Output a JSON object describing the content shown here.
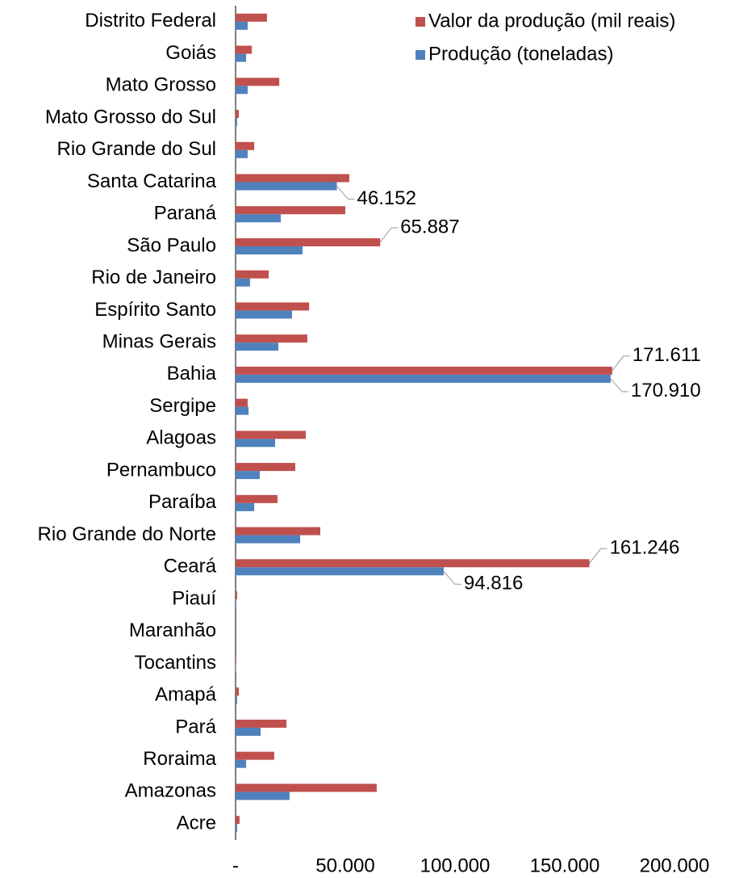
{
  "chart_data": {
    "type": "bar",
    "orientation": "horizontal",
    "categories": [
      "Distrito Federal",
      "Goiás",
      "Mato Grosso",
      "Mato Grosso do Sul",
      "Rio Grande do Sul",
      "Santa Catarina",
      "Paraná",
      "São Paulo",
      "Rio de Janeiro",
      "Espírito Santo",
      "Minas Gerais",
      "Bahia",
      "Sergipe",
      "Alagoas",
      "Pernambuco",
      "Paraíba",
      "Rio Grande do Norte",
      "Ceará",
      "Piauí",
      "Maranhão",
      "Tocantins",
      "Amapá",
      "Pará",
      "Roraima",
      "Amazonas",
      "Acre"
    ],
    "series": [
      {
        "name": "Valor da produção (mil reais)",
        "color": "#c0504d",
        "values": [
          14300,
          7400,
          19900,
          1500,
          8500,
          51800,
          50000,
          65887,
          15100,
          33500,
          32700,
          171611,
          5500,
          32000,
          27200,
          19100,
          38600,
          161246,
          700,
          0,
          300,
          1500,
          23200,
          17600,
          64300,
          1800
        ],
        "value_labels": [
          null,
          null,
          null,
          null,
          null,
          null,
          null,
          "65.887",
          null,
          null,
          null,
          "171.611",
          null,
          null,
          null,
          null,
          null,
          "161.246",
          null,
          null,
          null,
          null,
          null,
          null,
          null,
          null
        ]
      },
      {
        "name": "Produção (toneladas)",
        "color": "#4f81bd",
        "values": [
          5500,
          4800,
          5500,
          700,
          5500,
          46152,
          20600,
          30500,
          6600,
          25700,
          19500,
          170910,
          5900,
          18000,
          11000,
          8500,
          29400,
          94816,
          300,
          0,
          200,
          700,
          11400,
          4800,
          24600,
          700
        ],
        "value_labels": [
          null,
          null,
          null,
          null,
          null,
          "46.152",
          null,
          null,
          null,
          null,
          null,
          "170.910",
          null,
          null,
          null,
          null,
          null,
          "94.816",
          null,
          null,
          null,
          null,
          null,
          null,
          null,
          null
        ]
      }
    ],
    "xlim": [
      0,
      200000
    ],
    "xticks": [
      {
        "value": 0,
        "label": "-"
      },
      {
        "value": 50000,
        "label": "50.000"
      },
      {
        "value": 100000,
        "label": "100.000"
      },
      {
        "value": 150000,
        "label": "150.000"
      },
      {
        "value": 200000,
        "label": "200.000"
      }
    ],
    "legend": "top-right",
    "grid": false
  }
}
